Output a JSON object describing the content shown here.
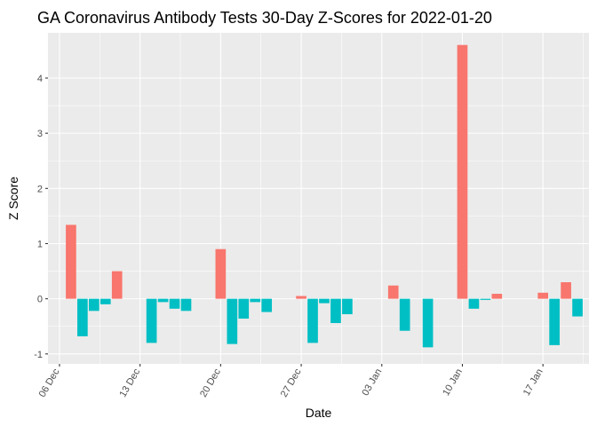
{
  "chart_data": {
    "type": "bar",
    "title": "GA Coronavirus Antibody Tests 30-Day Z-Scores for 2022-01-20",
    "xlabel": "Date",
    "ylabel": "Z Score",
    "x_tick_labels": [
      "06 Dec",
      "13 Dec",
      "20 Dec",
      "27 Dec",
      "03 Jan",
      "10 Jan",
      "17 Jan"
    ],
    "y_ticks": [
      -1,
      0,
      1,
      2,
      3,
      4
    ],
    "xlim": [
      "2021-12-05",
      "2022-01-21"
    ],
    "ylim": [
      -1.18,
      4.82
    ],
    "grid": true,
    "legend": "none",
    "colors": {
      "positive": "#F8766D",
      "negative": "#00BFC4",
      "panel": "#EBEBEB"
    },
    "dates": [
      "2021-12-07",
      "2021-12-08",
      "2021-12-09",
      "2021-12-10",
      "2021-12-11",
      "2021-12-12",
      "2021-12-13",
      "2021-12-14",
      "2021-12-15",
      "2021-12-16",
      "2021-12-17",
      "2021-12-18",
      "2021-12-19",
      "2021-12-20",
      "2021-12-21",
      "2021-12-22",
      "2021-12-23",
      "2021-12-24",
      "2021-12-25",
      "2021-12-26",
      "2021-12-27",
      "2021-12-28",
      "2021-12-29",
      "2021-12-30",
      "2021-12-31",
      "2022-01-01",
      "2022-01-02",
      "2022-01-03",
      "2022-01-04",
      "2022-01-05",
      "2022-01-06",
      "2022-01-07",
      "2022-01-08",
      "2022-01-09",
      "2022-01-10",
      "2022-01-11",
      "2022-01-12",
      "2022-01-13",
      "2022-01-14",
      "2022-01-15",
      "2022-01-16",
      "2022-01-17",
      "2022-01-18",
      "2022-01-19",
      "2022-01-20"
    ],
    "values": [
      1.34,
      -0.68,
      -0.22,
      -0.1,
      0.5,
      null,
      null,
      -0.8,
      -0.06,
      -0.18,
      -0.22,
      null,
      null,
      0.9,
      -0.82,
      -0.36,
      -0.06,
      -0.24,
      null,
      null,
      0.05,
      -0.8,
      -0.08,
      -0.44,
      -0.28,
      null,
      null,
      null,
      0.24,
      -0.58,
      null,
      -0.88,
      null,
      null,
      4.6,
      -0.18,
      -0.02,
      0.09,
      null,
      null,
      null,
      0.11,
      -0.84,
      0.3,
      -0.32
    ]
  }
}
